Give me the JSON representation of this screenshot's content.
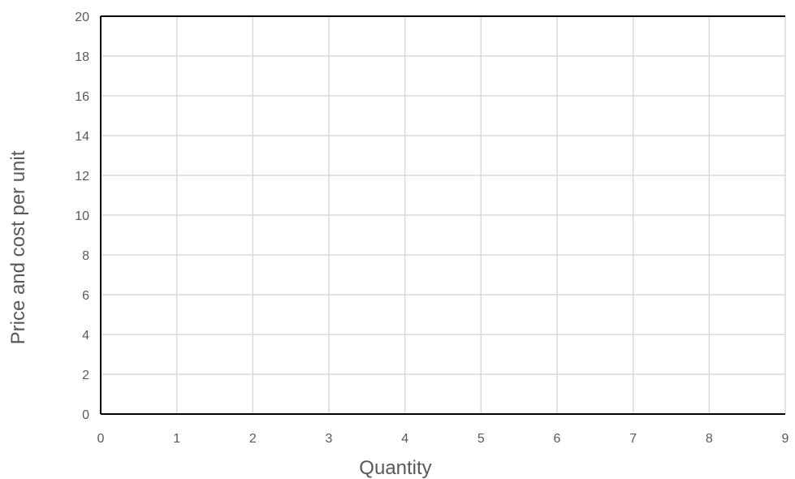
{
  "chart_data": {
    "type": "line",
    "title": "",
    "xlabel": "Quantity",
    "ylabel": "Price and cost per unit",
    "xlim": [
      0,
      9
    ],
    "ylim": [
      0,
      20
    ],
    "x_ticks": [
      0,
      1,
      2,
      3,
      4,
      5,
      6,
      7,
      8,
      9
    ],
    "y_ticks": [
      0,
      2,
      4,
      6,
      8,
      10,
      12,
      14,
      16,
      18,
      20
    ],
    "grid": true,
    "series": []
  },
  "colors": {
    "grid": "#d9d9d9",
    "axis": "#000000",
    "text": "#595959"
  }
}
